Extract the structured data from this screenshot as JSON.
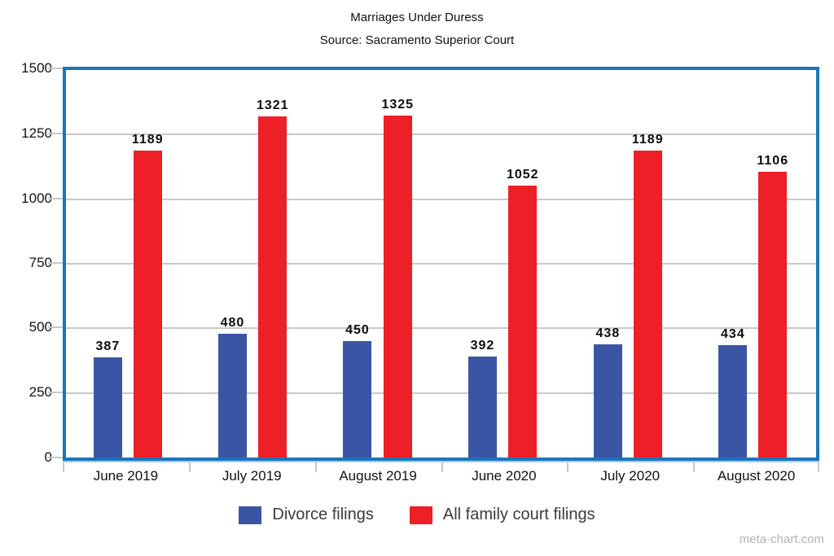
{
  "title": "Marriages Under Duress",
  "subtitle": "Source: Sacramento Superior Court",
  "watermark": "meta-chart.com",
  "colors": {
    "plot_border": "#1b75bc",
    "gridline": "#c9c9c9",
    "divorce_blue": "#3a55a4",
    "family_red": "#ec2026",
    "legend_text": "#3c3c3c",
    "watermark_gray": "#b3b3b3"
  },
  "chart_data": {
    "type": "bar",
    "title": "Marriages Under Duress",
    "subtitle": "Source: Sacramento Superior Court",
    "categories": [
      "June 2019",
      "July 2019",
      "August 2019",
      "June 2020",
      "July 2020",
      "August 2020"
    ],
    "series": [
      {
        "name": "Divorce filings",
        "color": "#3a55a4",
        "values": [
          387,
          480,
          450,
          392,
          438,
          434
        ]
      },
      {
        "name": "All family court filings",
        "color": "#ec2026",
        "values": [
          1189,
          1321,
          1325,
          1052,
          1189,
          1106
        ]
      }
    ],
    "xlabel": "",
    "ylabel": "",
    "ylim": [
      0,
      1500
    ],
    "yticks": [
      0,
      250,
      500,
      750,
      1000,
      1250,
      1500
    ],
    "grid": true,
    "legend_position": "bottom",
    "value_labels": true
  }
}
